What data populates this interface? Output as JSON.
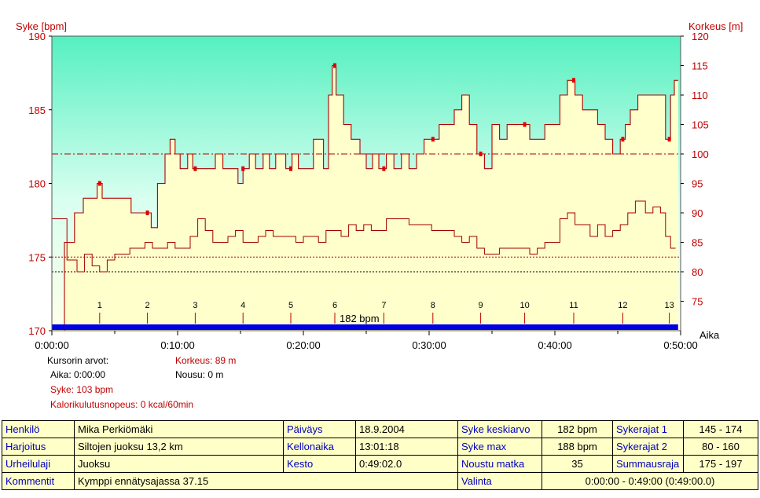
{
  "chart_data": {
    "type": "line",
    "left_axis_label": "Syke [bpm]",
    "right_axis_label": "Korkeus [m]",
    "x_axis_label": "Aika",
    "left_ylim": [
      170,
      190
    ],
    "right_ylim": [
      70,
      120
    ],
    "left_ticks": [
      170,
      175,
      180,
      185,
      190
    ],
    "right_ticks": [
      75,
      80,
      85,
      90,
      95,
      100,
      105,
      110,
      115,
      120
    ],
    "x_ticks": [
      "0:00:00",
      "0:10:00",
      "0:20:00",
      "0:30:00",
      "0:40:00",
      "0:50:00"
    ],
    "x_range_min": [
      0,
      50
    ],
    "reference_lines_bpm": [
      182,
      175,
      174
    ],
    "lap_markers": [
      {
        "label": "1",
        "t": 3.8
      },
      {
        "label": "2",
        "t": 7.6
      },
      {
        "label": "3",
        "t": 11.4
      },
      {
        "label": "4",
        "t": 15.2
      },
      {
        "label": "5",
        "t": 19.0
      },
      {
        "label": "6",
        "t": 22.5
      },
      {
        "label": "7",
        "t": 26.4
      },
      {
        "label": "8",
        "t": 30.3
      },
      {
        "label": "9",
        "t": 34.1
      },
      {
        "label": "10",
        "t": 37.6
      },
      {
        "label": "11",
        "t": 41.5
      },
      {
        "label": "12",
        "t": 45.4
      },
      {
        "label": "13",
        "t": 49.1
      }
    ],
    "bar_label": "182 bpm",
    "series": [
      {
        "name": "Syke",
        "axis": "left",
        "points": [
          [
            0,
            170
          ],
          [
            0.6,
            170
          ],
          [
            1.0,
            176
          ],
          [
            1.8,
            178
          ],
          [
            2.5,
            179
          ],
          [
            3.2,
            179
          ],
          [
            3.6,
            180
          ],
          [
            4.0,
            179
          ],
          [
            4.5,
            179
          ],
          [
            5.2,
            179
          ],
          [
            5.8,
            179
          ],
          [
            6.3,
            178
          ],
          [
            6.8,
            178
          ],
          [
            7.1,
            178
          ],
          [
            7.5,
            178
          ],
          [
            7.9,
            177
          ],
          [
            8.4,
            180
          ],
          [
            9.0,
            182
          ],
          [
            9.4,
            183
          ],
          [
            9.8,
            182
          ],
          [
            10.2,
            181
          ],
          [
            10.8,
            182
          ],
          [
            11.2,
            181
          ],
          [
            11.8,
            181
          ],
          [
            12.5,
            181
          ],
          [
            13.0,
            182
          ],
          [
            13.6,
            181
          ],
          [
            14.2,
            181
          ],
          [
            14.8,
            180
          ],
          [
            15.2,
            181
          ],
          [
            15.7,
            182
          ],
          [
            16.2,
            181
          ],
          [
            16.8,
            182
          ],
          [
            17.3,
            181
          ],
          [
            17.8,
            182
          ],
          [
            18.3,
            182
          ],
          [
            18.6,
            181
          ],
          [
            19.1,
            182
          ],
          [
            19.6,
            181
          ],
          [
            20.2,
            181
          ],
          [
            20.8,
            183
          ],
          [
            21.2,
            183
          ],
          [
            21.6,
            181
          ],
          [
            22.0,
            186
          ],
          [
            22.3,
            188
          ],
          [
            22.6,
            186
          ],
          [
            23.2,
            184
          ],
          [
            23.8,
            183
          ],
          [
            24.5,
            182
          ],
          [
            25.0,
            181
          ],
          [
            25.5,
            182
          ],
          [
            26.0,
            181
          ],
          [
            26.6,
            182
          ],
          [
            27.2,
            181
          ],
          [
            27.8,
            182
          ],
          [
            28.4,
            181
          ],
          [
            29.0,
            182
          ],
          [
            29.6,
            183
          ],
          [
            30.2,
            183
          ],
          [
            30.8,
            184
          ],
          [
            31.4,
            184
          ],
          [
            32.0,
            185
          ],
          [
            32.6,
            186
          ],
          [
            33.2,
            184
          ],
          [
            33.8,
            182
          ],
          [
            34.4,
            181
          ],
          [
            35.0,
            184
          ],
          [
            35.6,
            183
          ],
          [
            36.2,
            184
          ],
          [
            36.8,
            184
          ],
          [
            37.4,
            184
          ],
          [
            38.0,
            183
          ],
          [
            38.6,
            183
          ],
          [
            39.2,
            184
          ],
          [
            39.8,
            184
          ],
          [
            40.4,
            186
          ],
          [
            41.0,
            187
          ],
          [
            41.6,
            186
          ],
          [
            42.2,
            185
          ],
          [
            42.8,
            185
          ],
          [
            43.4,
            184
          ],
          [
            44.0,
            183
          ],
          [
            44.6,
            182
          ],
          [
            45.2,
            183
          ],
          [
            45.6,
            184
          ],
          [
            46.0,
            185
          ],
          [
            46.6,
            186
          ],
          [
            47.2,
            186
          ],
          [
            47.8,
            186
          ],
          [
            48.3,
            186
          ],
          [
            48.8,
            183
          ],
          [
            49.2,
            186
          ],
          [
            49.5,
            187
          ],
          [
            49.8,
            187
          ]
        ]
      },
      {
        "name": "Korkeus",
        "axis": "right",
        "points": [
          [
            0,
            89
          ],
          [
            0.5,
            89
          ],
          [
            1.2,
            82
          ],
          [
            2.0,
            80
          ],
          [
            2.6,
            83
          ],
          [
            3.2,
            81
          ],
          [
            3.8,
            80
          ],
          [
            4.4,
            82
          ],
          [
            5.0,
            83
          ],
          [
            5.6,
            83
          ],
          [
            6.2,
            84
          ],
          [
            6.8,
            84
          ],
          [
            7.4,
            85
          ],
          [
            8.0,
            84
          ],
          [
            8.6,
            84
          ],
          [
            9.2,
            85
          ],
          [
            9.8,
            84
          ],
          [
            10.4,
            84
          ],
          [
            11.0,
            86
          ],
          [
            11.6,
            89
          ],
          [
            12.2,
            87
          ],
          [
            12.8,
            85
          ],
          [
            13.4,
            85
          ],
          [
            14.0,
            86
          ],
          [
            14.6,
            87
          ],
          [
            15.2,
            85
          ],
          [
            15.8,
            85
          ],
          [
            16.4,
            86
          ],
          [
            17.0,
            87
          ],
          [
            17.6,
            86
          ],
          [
            18.2,
            86
          ],
          [
            18.8,
            86
          ],
          [
            19.4,
            85
          ],
          [
            20.0,
            86
          ],
          [
            20.6,
            86
          ],
          [
            21.2,
            85
          ],
          [
            21.8,
            87
          ],
          [
            22.4,
            87
          ],
          [
            23.0,
            86
          ],
          [
            23.6,
            88
          ],
          [
            24.2,
            87
          ],
          [
            24.8,
            88
          ],
          [
            25.4,
            87
          ],
          [
            26.0,
            87
          ],
          [
            26.6,
            89
          ],
          [
            27.2,
            89
          ],
          [
            27.8,
            89
          ],
          [
            28.4,
            88
          ],
          [
            29.0,
            88
          ],
          [
            29.6,
            88
          ],
          [
            30.2,
            87
          ],
          [
            30.8,
            87
          ],
          [
            31.4,
            87
          ],
          [
            32.0,
            86
          ],
          [
            32.6,
            85
          ],
          [
            33.2,
            86
          ],
          [
            33.8,
            84
          ],
          [
            34.4,
            83
          ],
          [
            35.0,
            83
          ],
          [
            35.6,
            84
          ],
          [
            36.2,
            84
          ],
          [
            36.8,
            84
          ],
          [
            37.4,
            84
          ],
          [
            38.0,
            83
          ],
          [
            38.6,
            84
          ],
          [
            39.2,
            85
          ],
          [
            39.8,
            85
          ],
          [
            40.4,
            89
          ],
          [
            41.0,
            90
          ],
          [
            41.6,
            88
          ],
          [
            42.2,
            88
          ],
          [
            42.8,
            86
          ],
          [
            43.4,
            88
          ],
          [
            44.0,
            86
          ],
          [
            44.6,
            87
          ],
          [
            45.2,
            88
          ],
          [
            45.8,
            90
          ],
          [
            46.4,
            92
          ],
          [
            46.8,
            92
          ],
          [
            47.2,
            90
          ],
          [
            47.8,
            91
          ],
          [
            48.4,
            90
          ],
          [
            48.8,
            86
          ],
          [
            49.2,
            84
          ],
          [
            49.6,
            84
          ]
        ]
      }
    ]
  },
  "cursor": {
    "title": "Kursorin arvot:",
    "aika": "Aika: 0:00:00",
    "syke": "Syke: 103 bpm",
    "korkeus": "Korkeus: 89 m",
    "nousu": "Nousu: 0 m",
    "kalori": "Kalorikulutusnopeus: 0 kcal/60min"
  },
  "info": {
    "henkilo_label": "Henkilö",
    "henkilo_value": "Mika Perkiömäki",
    "paivays_label": "Päiväys",
    "paivays_value": "18.9.2004",
    "syke_keskiarvo_label": "Syke keskiarvo",
    "syke_keskiarvo_value": "182 bpm",
    "sykerajat1_label": "Sykerajat 1",
    "sykerajat1_value": "145 - 174",
    "harjoitus_label": "Harjoitus",
    "harjoitus_value": "Siltojen juoksu 13,2 km",
    "kellonaika_label": "Kellonaika",
    "kellonaika_value": "13:01:18",
    "syke_max_label": "Syke max",
    "syke_max_value": "188 bpm",
    "sykerajat2_label": "Sykerajat 2",
    "sykerajat2_value": "80 - 160",
    "urheilulaji_label": "Urheilulaji",
    "urheilulaji_value": "Juoksu",
    "kesto_label": "Kesto",
    "kesto_value": "0:49:02.0",
    "noustu_label": "Noustu matka",
    "noustu_value": "35",
    "summausraja_label": "Summausraja",
    "summausraja_value": "175 - 197",
    "kommentit_label": "Kommentit",
    "kommentit_value": "Kymppi ennätysajassa 37.15",
    "valinta_label": "Valinta",
    "valinta_value": "0:00:00 - 0:49:00 (0:49:00.0)"
  },
  "colors": {
    "hr_line": "#b00000",
    "alt_line": "#a00000",
    "plot_top": "#55f0c0",
    "plot_bottom": "#ffffe0",
    "fill": "#ffffcc",
    "bar": "#0000e6",
    "axis_red": "#c00000"
  }
}
